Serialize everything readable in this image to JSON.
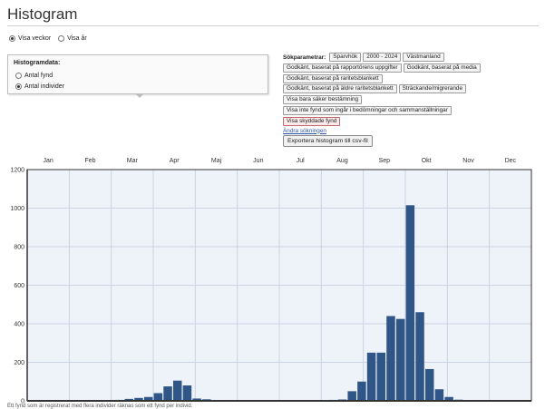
{
  "page": {
    "title": "Histogram"
  },
  "view_toggle": {
    "options": [
      {
        "label": "Visa veckor",
        "selected": true
      },
      {
        "label": "Visa år",
        "selected": false
      }
    ]
  },
  "histogram_box": {
    "title": "Histogramdata:",
    "options": [
      {
        "label": "Antal fynd",
        "selected": false
      },
      {
        "label": "Antal individer",
        "selected": true
      }
    ]
  },
  "search_params": {
    "label": "Sökparametrar:",
    "rows": [
      [
        {
          "text": "Sparvhök",
          "highlight": false
        },
        {
          "text": "2000 - 2024",
          "highlight": false
        },
        {
          "text": "Västmanland",
          "highlight": false
        }
      ],
      [
        {
          "text": "Godkänt, baserat på rapportörens uppgifter",
          "highlight": false
        },
        {
          "text": "Godkänt, baserat på media",
          "highlight": false
        }
      ],
      [
        {
          "text": "Godkänt, baserat på raritetsblankett",
          "highlight": false
        }
      ],
      [
        {
          "text": "Godkänt, baserat på äldre raritetsblankett",
          "highlight": false
        },
        {
          "text": "Sträckande/migrerande",
          "highlight": false
        }
      ],
      [
        {
          "text": "Visa bara säker bestämning",
          "highlight": false
        }
      ],
      [
        {
          "text": "Visa inte fynd som ingår i bedömningar och sammanställningar",
          "highlight": false
        }
      ],
      [
        {
          "text": "Visa skyddade fynd",
          "highlight": true
        }
      ]
    ],
    "change_link": "Ändra sökningen"
  },
  "export_button": "Exportera histogram till csv-fil",
  "colors": {
    "bar": "#2f5687",
    "plot_bg": "#eef3fa",
    "grid": "#c9d3e3",
    "axis": "#333333",
    "red_tag": "#c46a6a"
  },
  "chart_data": {
    "type": "bar",
    "months": [
      "Jan",
      "Feb",
      "Mar",
      "Apr",
      "Maj",
      "Jun",
      "Jul",
      "Aug",
      "Sep",
      "Okt",
      "Nov",
      "Dec"
    ],
    "ylim": [
      0,
      1200
    ],
    "yticks": [
      0,
      200,
      400,
      600,
      800,
      1000,
      1200
    ],
    "grid": true,
    "weeks": [
      1,
      2,
      3,
      4,
      5,
      6,
      7,
      8,
      9,
      10,
      11,
      12,
      13,
      14,
      15,
      16,
      17,
      18,
      19,
      20,
      21,
      22,
      23,
      24,
      25,
      26,
      27,
      28,
      29,
      30,
      31,
      32,
      33,
      34,
      35,
      36,
      37,
      38,
      39,
      40,
      41,
      42,
      43,
      44,
      45,
      46,
      47,
      48,
      49,
      50,
      51,
      52
    ],
    "values": [
      3,
      2,
      1,
      1,
      1,
      2,
      1,
      2,
      3,
      5,
      10,
      15,
      20,
      40,
      75,
      105,
      80,
      12,
      8,
      3,
      2,
      1,
      1,
      1,
      2,
      1,
      1,
      1,
      2,
      3,
      4,
      5,
      7,
      50,
      100,
      250,
      250,
      440,
      425,
      1015,
      460,
      165,
      60,
      20,
      6,
      3,
      2,
      2,
      1,
      1,
      1,
      1
    ]
  },
  "footer_text": "Ett fynd som är registrerat med flera individer räknas som ett fynd per individ."
}
